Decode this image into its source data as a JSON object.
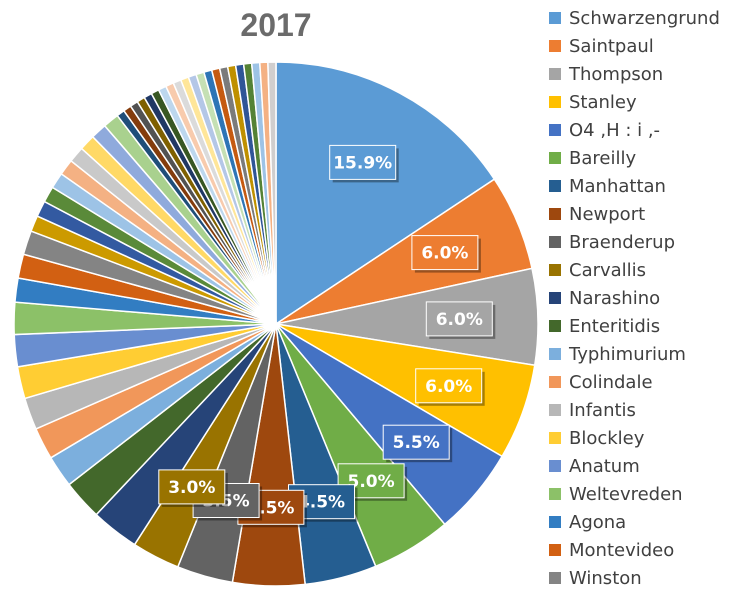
{
  "chart_data": {
    "type": "pie",
    "title": "2017",
    "legend_position": "right",
    "slices": [
      {
        "label": "Schwarzengrund",
        "value": 15.9,
        "color": "#5B9BD5",
        "show_label": true
      },
      {
        "label": "Saintpaul",
        "value": 6.0,
        "color": "#ED7D31",
        "show_label": true
      },
      {
        "label": "Thompson",
        "value": 6.0,
        "color": "#A5A5A5",
        "show_label": true
      },
      {
        "label": "Stanley",
        "value": 6.0,
        "color": "#FFC000",
        "show_label": true
      },
      {
        "label": "O4 ,H : i ,-",
        "value": 5.5,
        "color": "#4472C4",
        "show_label": true
      },
      {
        "label": "Bareilly",
        "value": 5.0,
        "color": "#70AD47",
        "show_label": true
      },
      {
        "label": "Manhattan",
        "value": 4.5,
        "color": "#255E91",
        "show_label": true
      },
      {
        "label": "Newport",
        "value": 4.5,
        "color": "#9E480E",
        "show_label": true
      },
      {
        "label": "Braenderup",
        "value": 3.5,
        "color": "#636363",
        "show_label": true
      },
      {
        "label": "Carvallis",
        "value": 3.0,
        "color": "#997300",
        "show_label": true
      },
      {
        "label": "Narashino",
        "value": 3.0,
        "color": "#264478",
        "show_label": false
      },
      {
        "label": "Enteritidis",
        "value": 2.5,
        "color": "#43682B",
        "show_label": false
      },
      {
        "label": "Typhimurium",
        "value": 2.0,
        "color": "#7CAFDD",
        "show_label": false
      },
      {
        "label": "Colindale",
        "value": 2.0,
        "color": "#F1975A",
        "show_label": false
      },
      {
        "label": "Infantis",
        "value": 2.0,
        "color": "#B7B7B7",
        "show_label": false
      },
      {
        "label": "Blockley",
        "value": 2.0,
        "color": "#FFCD33",
        "show_label": false
      },
      {
        "label": "Anatum",
        "value": 2.0,
        "color": "#698ED0",
        "show_label": false
      },
      {
        "label": "Weltevreden",
        "value": 2.0,
        "color": "#8CC168",
        "show_label": false
      },
      {
        "label": "Agona",
        "value": 1.5,
        "color": "#327DC2",
        "show_label": false
      },
      {
        "label": "Montevideo",
        "value": 1.5,
        "color": "#D26012",
        "show_label": false
      },
      {
        "label": "Winston",
        "value": 1.5,
        "color": "#848484",
        "show_label": false
      },
      {
        "label": "",
        "value": 1.0,
        "color": "#CC9A00",
        "show_label": false
      },
      {
        "label": "",
        "value": 1.0,
        "color": "#335AA1",
        "show_label": false
      },
      {
        "label": "",
        "value": 1.0,
        "color": "#5A8A39",
        "show_label": false
      },
      {
        "label": "",
        "value": 1.0,
        "color": "#9DC3E6",
        "show_label": false
      },
      {
        "label": "",
        "value": 1.0,
        "color": "#F4B183",
        "show_label": false
      },
      {
        "label": "",
        "value": 1.0,
        "color": "#C9C9C9",
        "show_label": false
      },
      {
        "label": "",
        "value": 1.0,
        "color": "#FFD966",
        "show_label": false
      },
      {
        "label": "",
        "value": 1.0,
        "color": "#8FAADC",
        "show_label": false
      },
      {
        "label": "",
        "value": 1.0,
        "color": "#A9D18E",
        "show_label": false
      },
      {
        "label": "",
        "value": 0.5,
        "color": "#1F4E79",
        "show_label": false
      },
      {
        "label": "",
        "value": 0.5,
        "color": "#843C0C",
        "show_label": false
      },
      {
        "label": "",
        "value": 0.5,
        "color": "#525252",
        "show_label": false
      },
      {
        "label": "",
        "value": 0.5,
        "color": "#7F6000",
        "show_label": false
      },
      {
        "label": "",
        "value": 0.5,
        "color": "#203864",
        "show_label": false
      },
      {
        "label": "",
        "value": 0.5,
        "color": "#385723",
        "show_label": false
      },
      {
        "label": "",
        "value": 0.5,
        "color": "#BDD7EE",
        "show_label": false
      },
      {
        "label": "",
        "value": 0.5,
        "color": "#F8CBAD",
        "show_label": false
      },
      {
        "label": "",
        "value": 0.5,
        "color": "#DBDBDB",
        "show_label": false
      },
      {
        "label": "",
        "value": 0.5,
        "color": "#FFE699",
        "show_label": false
      },
      {
        "label": "",
        "value": 0.5,
        "color": "#B4C7E7",
        "show_label": false
      },
      {
        "label": "",
        "value": 0.5,
        "color": "#C5E0B4",
        "show_label": false
      },
      {
        "label": "",
        "value": 0.5,
        "color": "#2E75B6",
        "show_label": false
      },
      {
        "label": "",
        "value": 0.5,
        "color": "#C55A11",
        "show_label": false
      },
      {
        "label": "",
        "value": 0.5,
        "color": "#7B7B7B",
        "show_label": false
      },
      {
        "label": "",
        "value": 0.5,
        "color": "#BF9000",
        "show_label": false
      },
      {
        "label": "",
        "value": 0.5,
        "color": "#2F5597",
        "show_label": false
      },
      {
        "label": "",
        "value": 0.5,
        "color": "#548235",
        "show_label": false
      },
      {
        "label": "",
        "value": 0.5,
        "color": "#9DC3E6",
        "show_label": false
      },
      {
        "label": "",
        "value": 0.5,
        "color": "#F4B183",
        "show_label": false
      },
      {
        "label": "",
        "value": 0.5,
        "color": "#D0CECE",
        "show_label": false
      }
    ]
  }
}
